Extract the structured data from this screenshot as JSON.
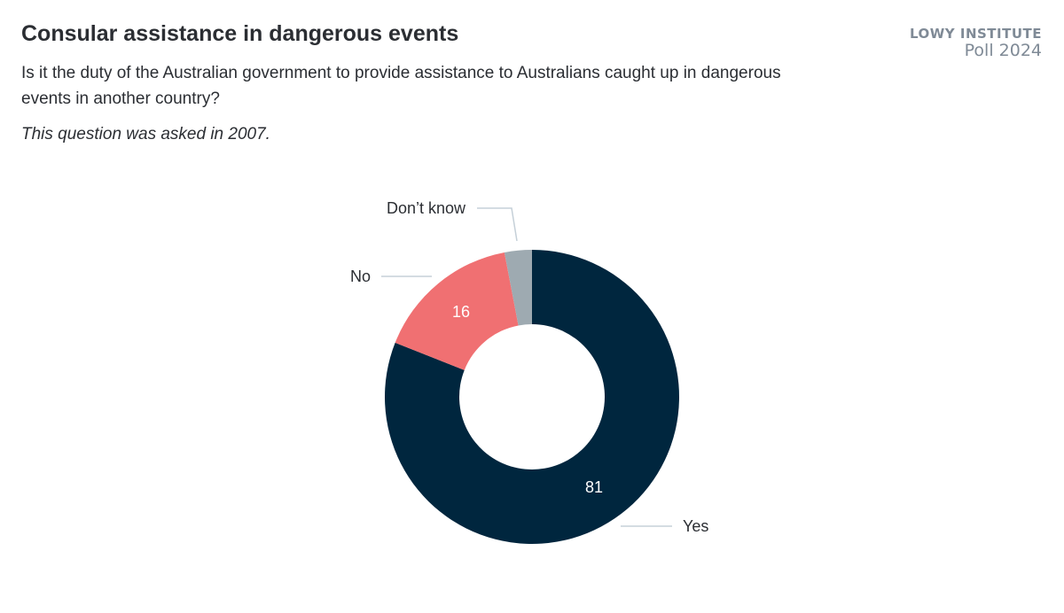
{
  "header": {
    "title": "Consular assistance in dangerous events",
    "subtitle": "Is it the duty of the Australian government to provide assistance to Australians caught up in dangerous events in another country?",
    "note": "This question was asked in 2007."
  },
  "brand": {
    "line1": "LOWY INSTITUTE",
    "line2": "Poll 2024"
  },
  "chart_data": {
    "type": "pie",
    "donut": true,
    "categories": [
      "Yes",
      "No",
      "Don’t know"
    ],
    "values": [
      81,
      16,
      3
    ],
    "data_labels": [
      "81",
      "16",
      ""
    ],
    "colors": [
      "#00263e",
      "#f07072",
      "#9eaab1"
    ],
    "legend": "none"
  }
}
